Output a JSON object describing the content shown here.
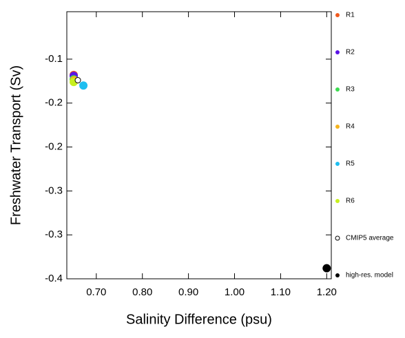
{
  "chart_data": {
    "type": "scatter",
    "xlabel": "Salinity Difference (psu)",
    "ylabel": "Freshwater Transport (Sv)",
    "xlim": [
      0.636,
      1.21
    ],
    "ylim": [
      -0.35,
      -0.046
    ],
    "xticks": [
      {
        "value": 0.7,
        "label": "0.70"
      },
      {
        "value": 0.8,
        "label": "0.80"
      },
      {
        "value": 0.9,
        "label": "0.90"
      },
      {
        "value": 1.0,
        "label": "1.00"
      },
      {
        "value": 1.1,
        "label": "1.10"
      },
      {
        "value": 1.2,
        "label": "1.20"
      }
    ],
    "yticks": [
      {
        "value": -0.1,
        "label": "-0.1"
      },
      {
        "value": -0.15,
        "label": "-0.2"
      },
      {
        "value": -0.2,
        "label": "-0.2"
      },
      {
        "value": -0.25,
        "label": "-0.3"
      },
      {
        "value": -0.3,
        "label": "-0.3"
      },
      {
        "value": -0.35,
        "label": "-0.4"
      }
    ],
    "series": [
      {
        "name": "R1",
        "color": "#f05a1e",
        "x": [
          0.651
        ],
        "y": [
          -0.118
        ]
      },
      {
        "name": "R2",
        "color": "#5a14e6",
        "x": [
          0.651
        ],
        "y": [
          -0.119
        ]
      },
      {
        "name": "R3",
        "color": "#3cdc50",
        "x": [
          0.651
        ],
        "y": [
          -0.123
        ]
      },
      {
        "name": "R4",
        "color": "#f5b41e",
        "x": [
          0.652
        ],
        "y": [
          -0.124
        ]
      },
      {
        "name": "R5",
        "color": "#1ebef0",
        "x": [
          0.672
        ],
        "y": [
          -0.13
        ]
      },
      {
        "name": "R6",
        "color": "#c8f01e",
        "x": [
          0.651
        ],
        "y": [
          -0.126
        ]
      },
      {
        "name": "CMIP5 average",
        "color": "#000000",
        "open": true,
        "x": [
          0.66
        ],
        "y": [
          -0.124
        ]
      },
      {
        "name": "high-res. model",
        "color": "#000000",
        "x": [
          1.2
        ],
        "y": [
          -0.338
        ]
      }
    ]
  }
}
